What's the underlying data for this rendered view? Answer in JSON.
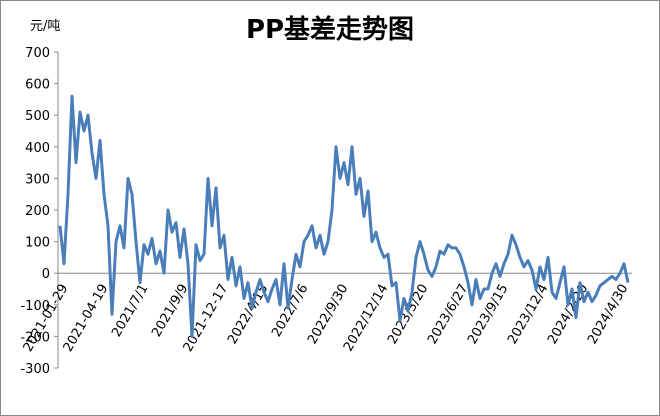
{
  "chart_data": {
    "type": "line",
    "title": "PP基差走势图",
    "y_label": "元/吨",
    "categories": [
      null,
      null,
      "2021-01-29",
      null,
      null,
      null,
      null,
      null,
      null,
      null,
      null,
      null,
      "2021-04-19",
      null,
      null,
      null,
      null,
      null,
      null,
      null,
      null,
      null,
      "2021/7/1",
      null,
      null,
      null,
      null,
      null,
      null,
      null,
      null,
      null,
      "2021/9/9",
      null,
      null,
      null,
      null,
      null,
      null,
      null,
      null,
      null,
      "2021-12-17",
      null,
      null,
      null,
      null,
      null,
      null,
      null,
      null,
      null,
      "2022/4/15",
      null,
      null,
      null,
      null,
      null,
      null,
      null,
      null,
      null,
      "2022/7/6",
      null,
      null,
      null,
      null,
      null,
      null,
      null,
      null,
      null,
      "2022/9/30",
      null,
      null,
      null,
      null,
      null,
      null,
      null,
      null,
      null,
      "2022/12/14",
      null,
      null,
      null,
      null,
      null,
      null,
      null,
      null,
      null,
      "2023/3/20",
      null,
      null,
      null,
      null,
      null,
      null,
      null,
      null,
      null,
      "2023/6/27",
      null,
      null,
      null,
      null,
      null,
      null,
      null,
      null,
      null,
      "2023/9/15",
      null,
      null,
      null,
      null,
      null,
      null,
      null,
      null,
      null,
      "2023/12/4",
      null,
      null,
      null,
      null,
      null,
      null,
      null,
      null,
      null,
      "2024/2/20",
      null,
      null,
      null,
      null,
      null,
      null,
      null,
      null,
      null,
      "2024/4/30"
    ],
    "series": [
      {
        "name": "PP基差",
        "color": "#4a7ebb",
        "values": [
          150,
          30,
          250,
          560,
          350,
          510,
          450,
          500,
          380,
          300,
          420,
          250,
          150,
          -130,
          100,
          150,
          80,
          300,
          250,
          100,
          -30,
          90,
          60,
          110,
          30,
          70,
          0,
          200,
          130,
          160,
          50,
          140,
          30,
          -200,
          90,
          40,
          60,
          300,
          150,
          270,
          80,
          120,
          -20,
          50,
          -40,
          20,
          -80,
          -30,
          -110,
          -60,
          -20,
          -60,
          -90,
          -50,
          -20,
          -100,
          30,
          -110,
          -20,
          60,
          20,
          100,
          120,
          150,
          80,
          120,
          60,
          100,
          200,
          400,
          300,
          350,
          280,
          400,
          250,
          300,
          180,
          260,
          100,
          130,
          80,
          50,
          60,
          -40,
          -30,
          -150,
          -80,
          -120,
          -60,
          50,
          100,
          60,
          10,
          -10,
          20,
          70,
          60,
          90,
          80,
          80,
          60,
          20,
          -30,
          -100,
          -20,
          -80,
          -50,
          -50,
          0,
          30,
          -10,
          30,
          60,
          120,
          90,
          50,
          20,
          40,
          10,
          -50,
          20,
          -20,
          50,
          -60,
          -80,
          -30,
          20,
          -100,
          -50,
          -140,
          -30,
          -90,
          -60,
          -90,
          -70,
          -40,
          -30,
          -20,
          -10,
          -20,
          0,
          30,
          -30
        ]
      }
    ],
    "ylim": [
      -300,
      700
    ],
    "yticks": [
      -300,
      -200,
      -100,
      0,
      100,
      200,
      300,
      400,
      500,
      600,
      700
    ]
  }
}
